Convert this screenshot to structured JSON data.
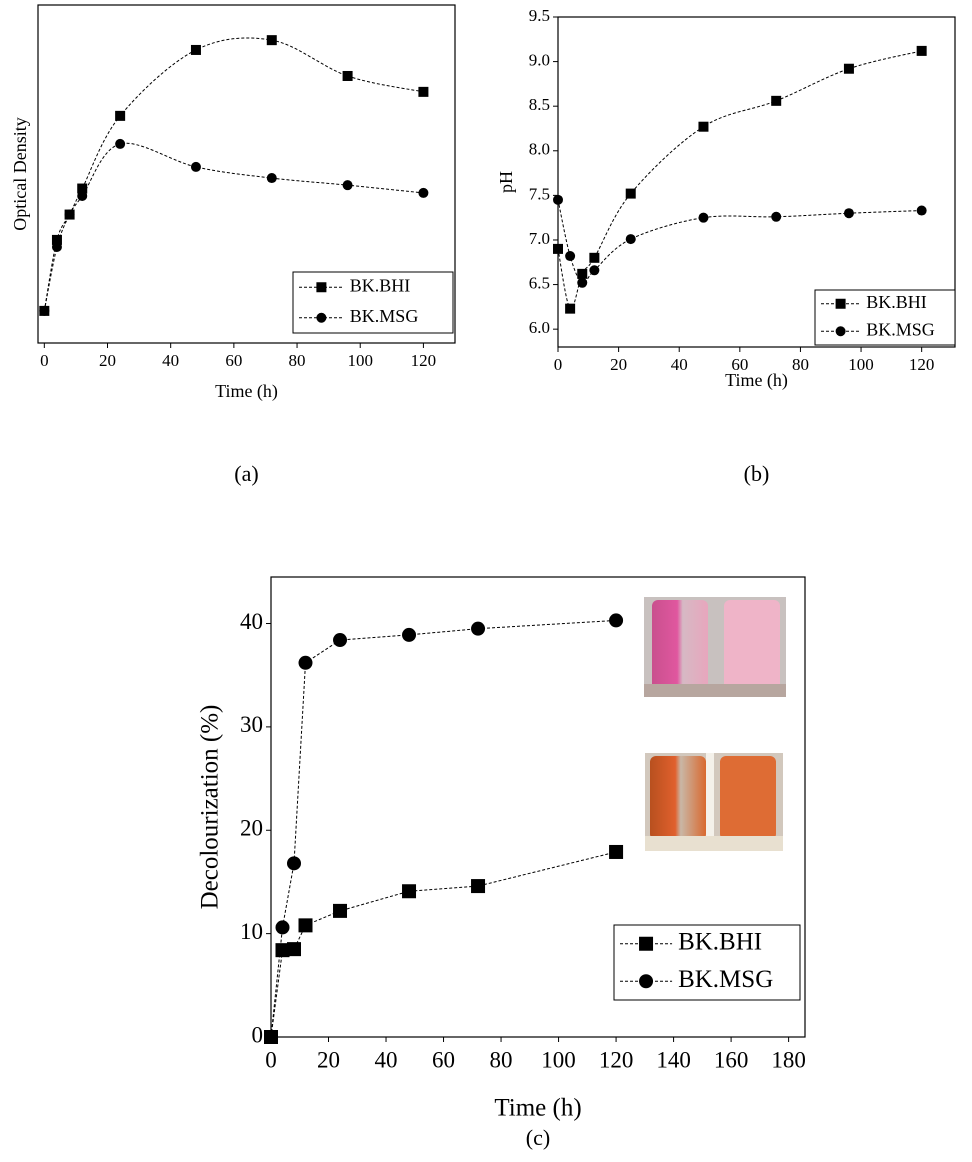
{
  "chart_data": [
    {
      "type": "line",
      "smooth": true,
      "x_label": "Time (h)",
      "y_label": "Optical Density",
      "caption": "(a)",
      "x": [
        0,
        4,
        8,
        12,
        24,
        48,
        72,
        96,
        120
      ],
      "xlim": [
        -2,
        130
      ],
      "xticks": [
        0,
        20,
        40,
        60,
        80,
        100,
        120
      ],
      "ylim": [
        0,
        1
      ],
      "legend": "lower right",
      "series": [
        {
          "name": "BK.BHI",
          "color": "#000000",
          "marker": "square",
          "values": [
            0.095,
            0.305,
            0.38,
            0.457,
            0.672,
            0.867,
            0.896,
            0.79,
            0.743
          ]
        },
        {
          "name": "BK.MSG",
          "color": "#000000",
          "marker": "circle",
          "values": [
            0.095,
            0.284,
            0.38,
            0.435,
            0.589,
            0.521,
            0.488,
            0.467,
            0.444
          ]
        }
      ]
    },
    {
      "type": "line",
      "smooth": true,
      "x_label": "Time (h)",
      "y_label": "pH",
      "caption": "(b)",
      "x": [
        0,
        4,
        8,
        12,
        24,
        48,
        72,
        96,
        120
      ],
      "xlim": [
        0,
        131
      ],
      "xticks": [
        0,
        20,
        40,
        60,
        80,
        100,
        120
      ],
      "ylim": [
        5.8,
        9.5
      ],
      "yticks": [
        {
          "value": 6,
          "label": "6.0"
        },
        6.5,
        {
          "value": 7,
          "label": "7.0"
        },
        7.5,
        {
          "value": 8,
          "label": "8.0"
        },
        8.5,
        {
          "value": 9,
          "label": "9.0"
        },
        9.5
      ],
      "legend": "lower right",
      "series": [
        {
          "name": "BK.BHI",
          "color": "#000000",
          "marker": "square",
          "values": [
            6.9,
            6.23,
            6.62,
            6.8,
            7.52,
            8.27,
            8.56,
            8.92,
            9.12
          ]
        },
        {
          "name": "BK.MSG",
          "color": "#000000",
          "marker": "circle",
          "values": [
            7.45,
            6.82,
            6.52,
            6.66,
            7.01,
            7.25,
            7.26,
            7.3,
            7.33
          ]
        }
      ]
    },
    {
      "type": "line",
      "smooth": false,
      "x_label": "Time (h)",
      "y_label": "Decolourization (%)",
      "caption": "(c)",
      "x": [
        0,
        4,
        8,
        12,
        24,
        48,
        72,
        120
      ],
      "xlim": [
        0,
        185.7
      ],
      "xticks": [
        0,
        20,
        40,
        60,
        80,
        100,
        120,
        140,
        160,
        180
      ],
      "ylim": [
        0,
        44.5
      ],
      "yticks": [
        0,
        10,
        20,
        30,
        40
      ],
      "legend": "lower right",
      "series": [
        {
          "name": "BK.BHI",
          "color": "#000000",
          "marker": "square",
          "values": [
            0,
            8.4,
            8.5,
            10.8,
            12.2,
            14.1,
            14.6,
            17.9
          ]
        },
        {
          "name": "BK.MSG",
          "color": "#000000",
          "marker": "circle",
          "values": [
            0,
            10.6,
            16.8,
            36.2,
            38.4,
            38.9,
            39.5,
            40.3
          ]
        }
      ]
    }
  ]
}
